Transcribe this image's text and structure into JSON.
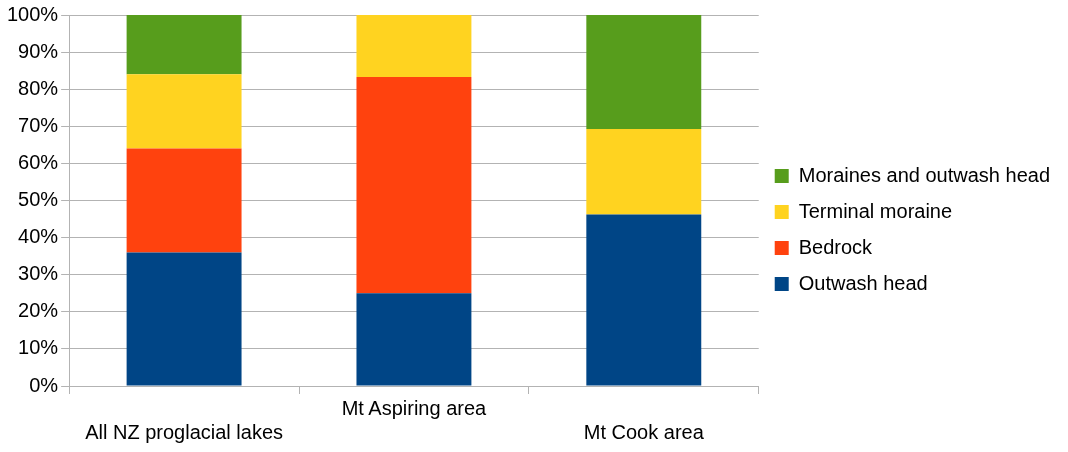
{
  "chart_data": {
    "type": "bar",
    "stacked": true,
    "categories": [
      "All NZ proglacial lakes",
      "Mt Aspiring area",
      "Mt Cook area"
    ],
    "series": [
      {
        "name": "Outwash head",
        "color": "#004586",
        "values": [
          36,
          25,
          46.2
        ]
      },
      {
        "name": "Bedrock",
        "color": "#ff420e",
        "values": [
          28,
          58.3,
          0
        ]
      },
      {
        "name": "Terminal moraine",
        "color": "#ffd320",
        "values": [
          20,
          16.7,
          23.1
        ]
      },
      {
        "name": "Moraines and outwash head",
        "color": "#579d1c",
        "values": [
          16,
          0,
          30.7
        ]
      }
    ],
    "ylim": [
      0,
      100
    ],
    "yticks": [
      {
        "value": 0,
        "label": "0%"
      },
      {
        "value": 10,
        "label": "10%"
      },
      {
        "value": 20,
        "label": "20%"
      },
      {
        "value": 30,
        "label": "30%"
      },
      {
        "value": 40,
        "label": "40%"
      },
      {
        "value": 50,
        "label": "50%"
      },
      {
        "value": 60,
        "label": "60%"
      },
      {
        "value": 70,
        "label": "70%"
      },
      {
        "value": 80,
        "label": "80%"
      },
      {
        "value": 90,
        "label": "90%"
      },
      {
        "value": 100,
        "label": "100%"
      }
    ],
    "grid": "y",
    "legend": "right"
  }
}
